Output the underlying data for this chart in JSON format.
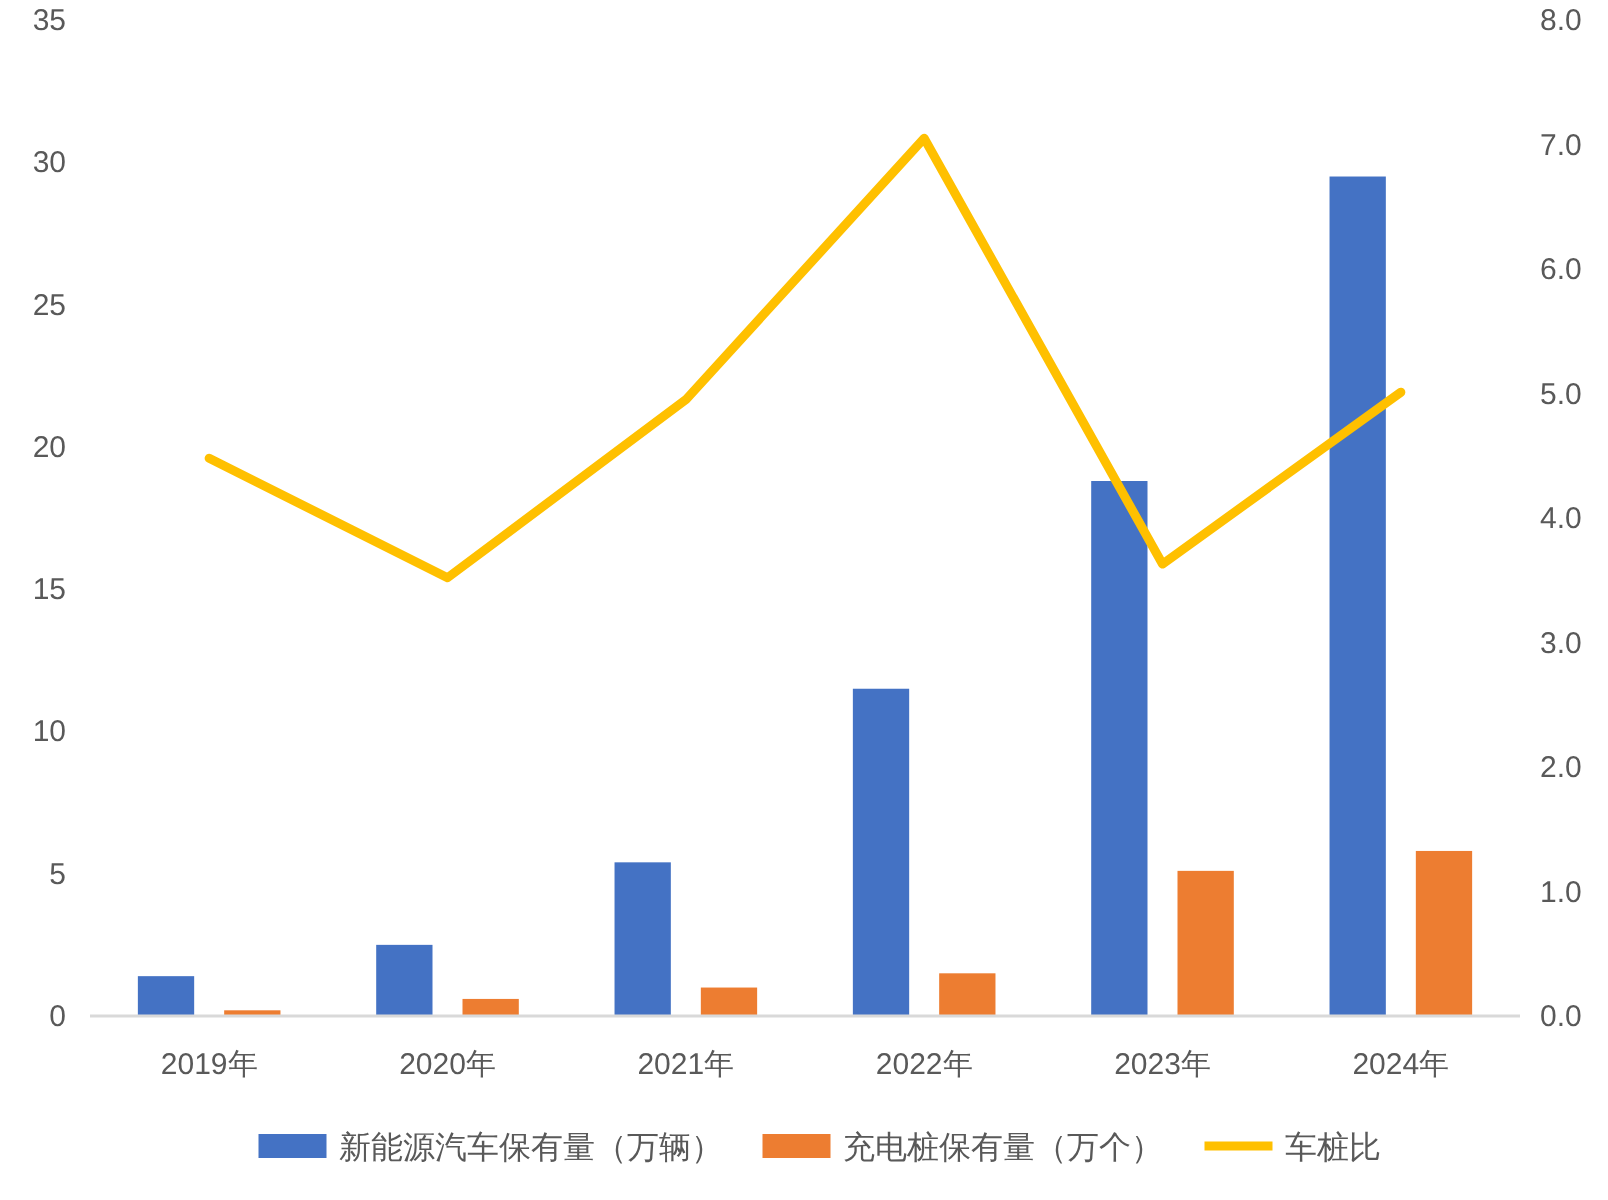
{
  "chart_data": {
    "type": "bar",
    "categories": [
      "2019年",
      "2020年",
      "2021年",
      "2022年",
      "2023年",
      "2024年"
    ],
    "series": [
      {
        "name": "新能源汽车保有量（万辆）",
        "color": "#4472c4",
        "values": [
          1.4,
          2.5,
          5.4,
          11.5,
          18.8,
          29.5
        ]
      },
      {
        "name": "充电桩保有量（万个）",
        "color": "#ed7d31",
        "values": [
          0.2,
          0.6,
          1.0,
          1.5,
          5.1,
          5.8
        ]
      },
      {
        "name": "车桩比",
        "color": "#ffc000",
        "type": "line",
        "axis": "y2",
        "values": [
          4.48,
          3.52,
          4.95,
          7.05,
          3.63,
          5.01
        ]
      }
    ],
    "ylim": [
      0,
      35
    ],
    "yticks": [
      0,
      5,
      10,
      15,
      20,
      25,
      30,
      35
    ],
    "y2lim": [
      0,
      8
    ],
    "y2ticks": [
      {
        "value": 0,
        "label": "0.0"
      },
      {
        "value": 1,
        "label": "1.0"
      },
      {
        "value": 2,
        "label": "2.0"
      },
      {
        "value": 3,
        "label": "3.0"
      },
      {
        "value": 4,
        "label": "4.0"
      },
      {
        "value": 5,
        "label": "5.0"
      },
      {
        "value": 6,
        "label": "6.0"
      },
      {
        "value": 7,
        "label": "7.0"
      },
      {
        "value": 8,
        "label": "8.0"
      }
    ],
    "grid": false,
    "legend": "bottom",
    "marker": "none",
    "line_style": "solid"
  }
}
